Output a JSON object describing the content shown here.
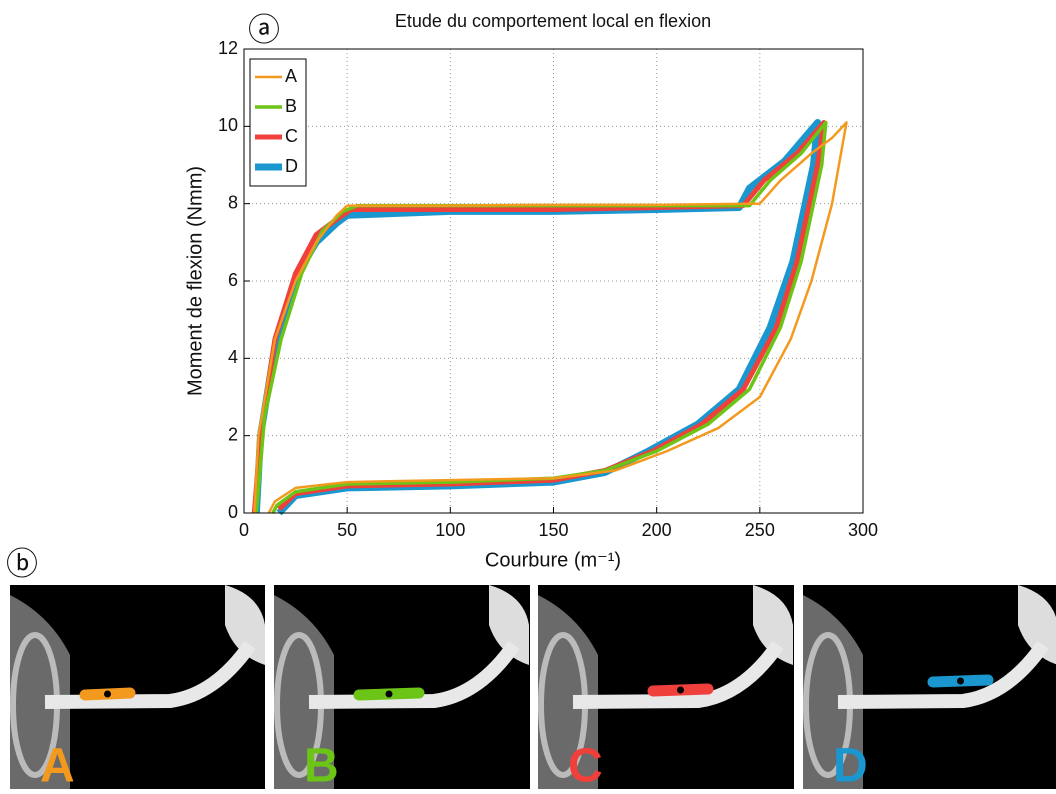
{
  "panel_labels": [
    "ⓐ",
    "ⓑ"
  ],
  "chart_data": {
    "type": "line",
    "title": "Etude du comportement local en flexion",
    "xlabel": "Courbure (m⁻¹)",
    "ylabel": "Moment de flexion (Nmm)",
    "xlim": [
      0,
      300
    ],
    "xticks": [
      0,
      50,
      100,
      150,
      200,
      250,
      300
    ],
    "ylim": [
      0,
      12
    ],
    "yticks": [
      0,
      2,
      4,
      6,
      8,
      10,
      12
    ],
    "grid": true,
    "legend": "upper left",
    "series": [
      {
        "name": "A",
        "color": "#f39a1e",
        "width": 2.5,
        "x": [
          5,
          7,
          15,
          25,
          35,
          45,
          50,
          100,
          150,
          200,
          250,
          260,
          275,
          285,
          292,
          285,
          275,
          265,
          250,
          230,
          205,
          180,
          150,
          100,
          50,
          25,
          15,
          12
        ],
        "values": [
          0,
          2,
          4.5,
          6,
          7,
          7.7,
          7.95,
          7.95,
          7.97,
          7.97,
          8.0,
          8.6,
          9.3,
          9.7,
          10.1,
          8,
          6,
          4.5,
          3,
          2.2,
          1.6,
          1.1,
          0.9,
          0.85,
          0.8,
          0.65,
          0.3,
          0
        ]
      },
      {
        "name": "B",
        "color": "#6cc417",
        "width": 3.5,
        "x": [
          6,
          10,
          18,
          28,
          38,
          48,
          55,
          100,
          150,
          200,
          245,
          255,
          270,
          282,
          280,
          270,
          260,
          245,
          225,
          200,
          175,
          150,
          100,
          50,
          25,
          16,
          14
        ],
        "values": [
          0,
          2.5,
          4.5,
          6.2,
          7.3,
          7.8,
          7.95,
          7.95,
          7.95,
          7.95,
          7.95,
          8.6,
          9.3,
          10.1,
          9,
          6.5,
          4.8,
          3.2,
          2.3,
          1.6,
          1.1,
          0.9,
          0.8,
          0.75,
          0.55,
          0.2,
          0
        ]
      },
      {
        "name": "C",
        "color": "#f0403c",
        "width": 5,
        "x": [
          5,
          8,
          15,
          25,
          35,
          45,
          52,
          100,
          150,
          200,
          242,
          252,
          268,
          281,
          278,
          268,
          258,
          242,
          222,
          198,
          175,
          150,
          100,
          50,
          25,
          17
        ],
        "values": [
          0,
          2,
          4.5,
          6.2,
          7.2,
          7.6,
          7.85,
          7.85,
          7.85,
          7.9,
          7.95,
          8.6,
          9.3,
          10.1,
          9,
          6.5,
          4.8,
          3.2,
          2.3,
          1.6,
          1.1,
          0.85,
          0.75,
          0.7,
          0.5,
          0.1
        ]
      },
      {
        "name": "D",
        "color": "#1a97cf",
        "width": 7,
        "x": [
          6,
          8,
          15,
          25,
          35,
          45,
          50,
          100,
          150,
          200,
          240,
          245,
          262,
          278,
          276,
          266,
          255,
          240,
          220,
          196,
          175,
          150,
          100,
          50,
          25,
          17
        ],
        "values": [
          0,
          2,
          4.3,
          6.1,
          7,
          7.5,
          7.7,
          7.8,
          7.8,
          7.85,
          7.9,
          8.4,
          9.1,
          10.1,
          9,
          6.5,
          4.8,
          3.2,
          2.3,
          1.6,
          1.05,
          0.8,
          0.7,
          0.65,
          0.45,
          0
        ]
      }
    ]
  }
}
